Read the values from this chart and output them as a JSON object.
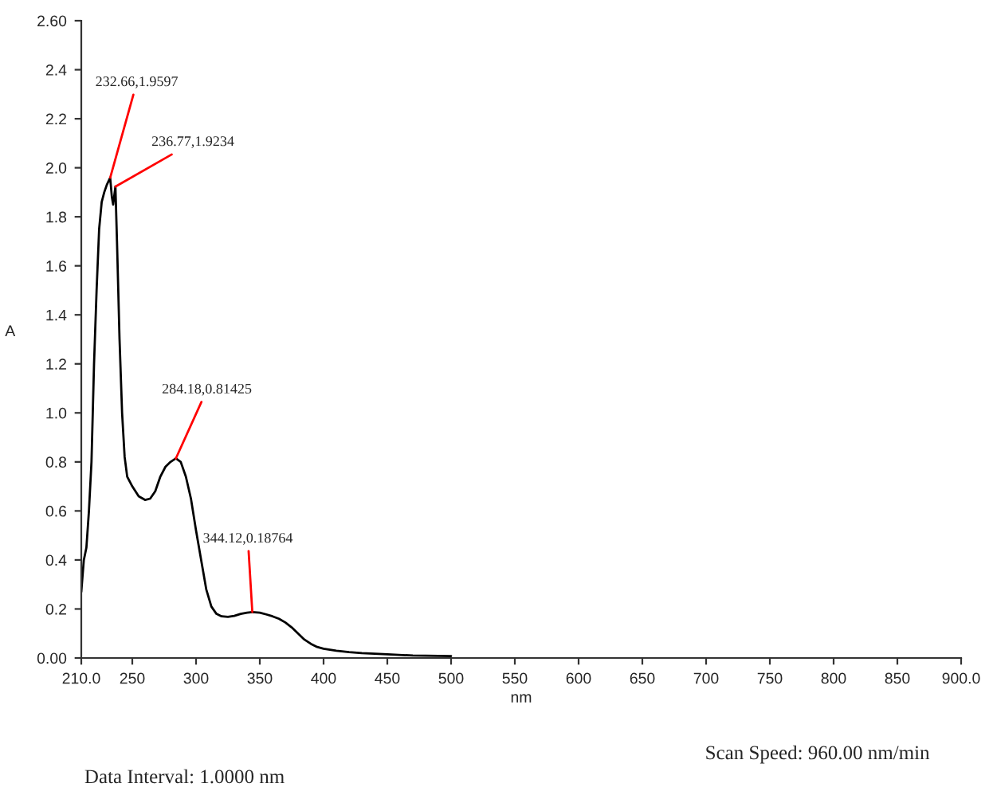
{
  "chart_data": {
    "type": "line",
    "xlabel": "nm",
    "ylabel": "A",
    "x": [
      210,
      212,
      214,
      216,
      218,
      220,
      222,
      224,
      226,
      228,
      230,
      232.66,
      234,
      235,
      236.77,
      238,
      240,
      242,
      244,
      246,
      250,
      255,
      260,
      264,
      268,
      272,
      276,
      280,
      284.18,
      288,
      292,
      296,
      300,
      304,
      308,
      312,
      316,
      320,
      325,
      330,
      335,
      340,
      344.12,
      350,
      355,
      360,
      365,
      370,
      375,
      380,
      385,
      390,
      395,
      400,
      410,
      420,
      430,
      450,
      470,
      500
    ],
    "series": [
      {
        "color": "#000000",
        "values": [
          0.27,
          0.4,
          0.45,
          0.6,
          0.8,
          1.2,
          1.5,
          1.75,
          1.86,
          1.9,
          1.93,
          1.9597,
          1.88,
          1.85,
          1.9234,
          1.7,
          1.3,
          1.0,
          0.82,
          0.74,
          0.7,
          0.66,
          0.645,
          0.65,
          0.68,
          0.74,
          0.78,
          0.8,
          0.81425,
          0.8,
          0.74,
          0.65,
          0.52,
          0.4,
          0.28,
          0.21,
          0.18,
          0.17,
          0.168,
          0.172,
          0.18,
          0.185,
          0.18764,
          0.185,
          0.178,
          0.17,
          0.16,
          0.145,
          0.125,
          0.1,
          0.075,
          0.058,
          0.045,
          0.038,
          0.03,
          0.024,
          0.02,
          0.015,
          0.01,
          0.008
        ]
      }
    ],
    "xlim": [
      210,
      900
    ],
    "xticks": [
      {
        "value": 210,
        "label": "210.0"
      },
      250,
      300,
      350,
      400,
      450,
      500,
      550,
      600,
      650,
      700,
      750,
      800,
      850,
      {
        "value": 900,
        "label": "900.0"
      }
    ],
    "ylim": [
      0,
      2.6
    ],
    "yticks": [
      {
        "value": 0,
        "label": "0.00"
      },
      0.2,
      0.4,
      0.6,
      0.8,
      {
        "value": 1,
        "label": "1.0"
      },
      1.2,
      1.4,
      1.6,
      1.8,
      {
        "value": 2,
        "label": "2.0"
      },
      2.2,
      2.4,
      {
        "value": 2.6,
        "label": "2.60"
      }
    ],
    "grid": false,
    "marker": "none",
    "line_style": "solid",
    "annotations": [
      {
        "text": "232.66,1.9597",
        "x": 232.66,
        "y": 1.9597
      },
      {
        "text": "236.77,1.9234",
        "x": 236.77,
        "y": 1.9234
      },
      {
        "text": "284.18,0.81425",
        "x": 284.18,
        "y": 0.81425
      },
      {
        "text": "344.12,0.18764",
        "x": 344.12,
        "y": 0.18764
      },
      "Scan Speed: 960.00 nm/min",
      "Data Interval: 1.0000 nm"
    ]
  }
}
